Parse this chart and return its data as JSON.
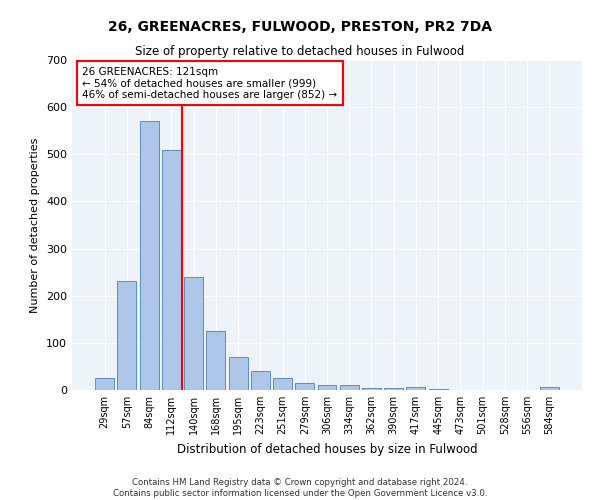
{
  "title": "26, GREENACRES, FULWOOD, PRESTON, PR2 7DA",
  "subtitle": "Size of property relative to detached houses in Fulwood",
  "xlabel": "Distribution of detached houses by size in Fulwood",
  "ylabel": "Number of detached properties",
  "bar_labels": [
    "29sqm",
    "57sqm",
    "84sqm",
    "112sqm",
    "140sqm",
    "168sqm",
    "195sqm",
    "223sqm",
    "251sqm",
    "279sqm",
    "306sqm",
    "334sqm",
    "362sqm",
    "390sqm",
    "417sqm",
    "445sqm",
    "473sqm",
    "501sqm",
    "528sqm",
    "556sqm",
    "584sqm"
  ],
  "bar_values": [
    25,
    232,
    570,
    510,
    240,
    125,
    70,
    40,
    25,
    14,
    11,
    11,
    5,
    5,
    7,
    2,
    0,
    0,
    0,
    0,
    6
  ],
  "bar_color": "#aec6e8",
  "bar_edge_color": "#5a8fc2",
  "red_line_index": 3,
  "annotation_text": "26 GREENACRES: 121sqm\n← 54% of detached houses are smaller (999)\n46% of semi-detached houses are larger (852) →",
  "annotation_box_color": "white",
  "annotation_box_edge": "red",
  "red_line_color": "red",
  "ylim": [
    0,
    700
  ],
  "yticks": [
    0,
    100,
    200,
    300,
    400,
    500,
    600,
    700
  ],
  "bg_color": "#eef2f9",
  "footer_line1": "Contains HM Land Registry data © Crown copyright and database right 2024.",
  "footer_line2": "Contains public sector information licensed under the Open Government Licence v3.0."
}
